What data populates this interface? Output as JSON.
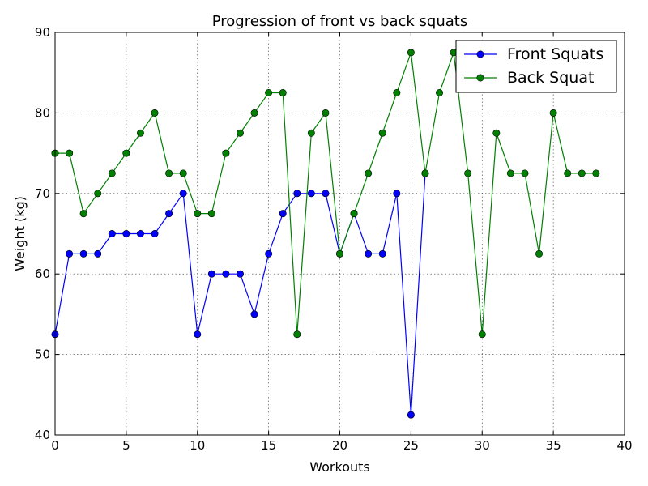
{
  "chart_data": {
    "type": "line",
    "title": "Progression of front vs back squats",
    "xlabel": "Workouts",
    "ylabel": "Weight (kg)",
    "xlim": [
      0,
      40
    ],
    "ylim": [
      40,
      90
    ],
    "xticks": [
      0,
      5,
      10,
      15,
      20,
      25,
      30,
      35,
      40
    ],
    "yticks": [
      40,
      50,
      60,
      70,
      80,
      90
    ],
    "grid": true,
    "legend_position": "top-right",
    "series": [
      {
        "name": "Front Squats",
        "color": "#0000ff",
        "x": [
          0,
          1,
          2,
          3,
          4,
          5,
          6,
          7,
          8,
          9,
          10,
          11,
          12,
          13,
          14,
          15,
          16,
          17,
          18,
          19,
          20,
          21,
          22,
          23,
          24,
          25,
          26
        ],
        "y": [
          52.5,
          62.5,
          62.5,
          62.5,
          65,
          65,
          65,
          65,
          67.5,
          70,
          52.5,
          60,
          60,
          60,
          55,
          62.5,
          67.5,
          70,
          70,
          70,
          62.5,
          67.5,
          62.5,
          62.5,
          70,
          42.5,
          72.5
        ]
      },
      {
        "name": "Back Squat",
        "color": "#008000",
        "x": [
          0,
          1,
          2,
          3,
          4,
          5,
          6,
          7,
          8,
          9,
          10,
          11,
          12,
          13,
          14,
          15,
          16,
          17,
          18,
          19,
          20,
          21,
          22,
          23,
          24,
          25,
          26,
          27,
          28,
          29,
          30,
          31,
          32,
          33,
          34,
          35,
          36,
          37,
          38
        ],
        "y": [
          75,
          75,
          67.5,
          70,
          72.5,
          75,
          77.5,
          80,
          72.5,
          72.5,
          67.5,
          67.5,
          75,
          77.5,
          80,
          82.5,
          82.5,
          52.5,
          77.5,
          80,
          62.5,
          67.5,
          72.5,
          77.5,
          82.5,
          87.5,
          72.5,
          82.5,
          87.5,
          72.5,
          52.5,
          77.5,
          72.5,
          72.5,
          62.5,
          80,
          72.5,
          72.5,
          72.5
        ]
      }
    ]
  }
}
